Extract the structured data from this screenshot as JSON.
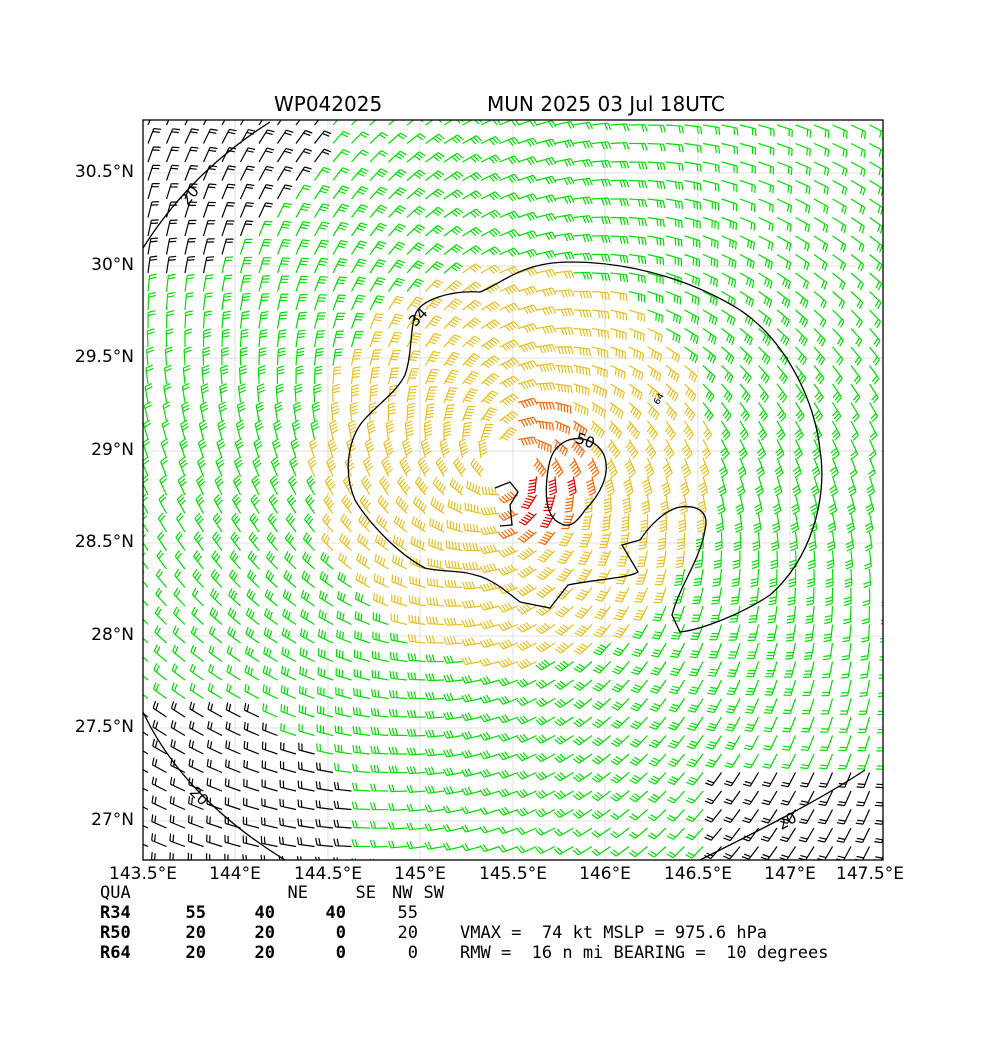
{
  "header": {
    "storm_id": "WP042025",
    "description": "MUN 2025 03 Jul 18UTC"
  },
  "map": {
    "lat_labels": [
      "27°N",
      "27.5°N",
      "28°N",
      "28.5°N",
      "29°N",
      "29.5°N",
      "30°N",
      "30.5°N"
    ],
    "lon_labels": [
      "143.5°E",
      "144°E",
      "144.5°E",
      "145°E",
      "145.5°E",
      "146°E",
      "146.5°E",
      "147°E",
      "147.5°E"
    ],
    "contour_labels": [
      "20",
      "34",
      "50",
      "20",
      "20",
      "64"
    ],
    "barb_colors": {
      "below_34": "#000000",
      "34_to_50": "#00e000",
      "50_to_64": "#e8c020",
      "64_plus": "#ff6600",
      "high": "#e00000"
    }
  },
  "radii_table": {
    "header": [
      "QUA",
      "NE",
      "SE",
      "SW",
      "NW"
    ],
    "rows": [
      {
        "label": "R34",
        "values": [
          "55",
          "40",
          "40",
          "55"
        ]
      },
      {
        "label": "R50",
        "values": [
          "20",
          "20",
          "0",
          "20"
        ]
      },
      {
        "label": "R64",
        "values": [
          "20",
          "20",
          "0",
          "0"
        ]
      }
    ]
  },
  "stats": {
    "line1": "VMAX =  74 kt MSLP = 975.6 hPa",
    "line2": "RMW =  16 n mi BEARING =  10 degrees"
  }
}
